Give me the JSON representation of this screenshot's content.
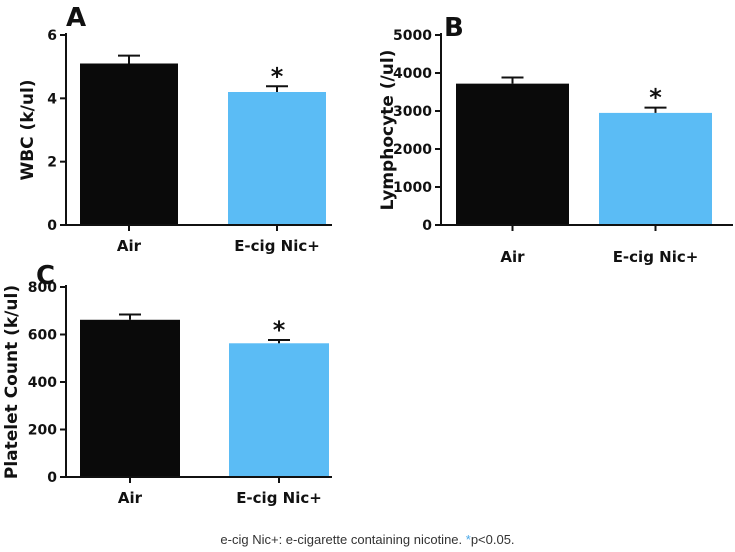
{
  "chart_data": [
    {
      "type": "bar",
      "panel": "A",
      "categories": [
        "Air",
        "E-cig Nic+"
      ],
      "values": [
        5.1,
        4.2
      ],
      "errors": [
        0.25,
        0.18
      ],
      "significance": [
        "",
        "*"
      ],
      "ylabel": "WBC (k/ul)",
      "ylim": [
        0,
        6
      ],
      "yticks": [
        0,
        2,
        4,
        6
      ],
      "colors": [
        "#0a0a0a",
        "#5bbcf5"
      ]
    },
    {
      "type": "bar",
      "panel": "B",
      "categories": [
        "Air",
        "E-cig Nic+"
      ],
      "values": [
        3720,
        2950
      ],
      "errors": [
        160,
        140
      ],
      "significance": [
        "",
        "*"
      ],
      "ylabel": "Lymphocyte (/ul)",
      "ylim": [
        0,
        5000
      ],
      "yticks": [
        0,
        1000,
        2000,
        3000,
        4000,
        5000
      ],
      "colors": [
        "#0a0a0a",
        "#5bbcf5"
      ]
    },
    {
      "type": "bar",
      "panel": "C",
      "categories": [
        "Air",
        "E-cig Nic+"
      ],
      "values": [
        662,
        563
      ],
      "errors": [
        22,
        14
      ],
      "significance": [
        "",
        "*"
      ],
      "ylabel": "Platelet Count (k/ul)",
      "ylim": [
        0,
        800
      ],
      "yticks": [
        0,
        200,
        400,
        600,
        800
      ],
      "colors": [
        "#0a0a0a",
        "#5bbcf5"
      ]
    }
  ],
  "caption": {
    "prefix": "e-cig Nic+: e-cigarette containing nicotine. ",
    "star": "*",
    "suffix": "p<0.05."
  }
}
